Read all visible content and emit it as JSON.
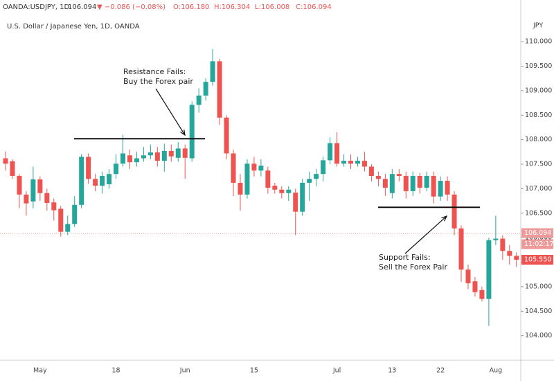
{
  "chart_data": {
    "type": "candlestick",
    "header": {
      "symbol": "OANDA:USDJPY, 1D",
      "last": "106.094",
      "change": "▼ −0.086 (−0.08%)",
      "ohlc": [
        "O:106.180",
        "H:106.304",
        "L:106.008",
        "C:106.094"
      ]
    },
    "subtitle": "U.S. Dollar / Japanese Yen, 1D, OANDA",
    "y_axis_label": "JPY",
    "up_color": "#26a69a",
    "down_color": "#ef5350",
    "categories": [
      null,
      null,
      null,
      null,
      null,
      "May",
      null,
      null,
      null,
      null,
      null,
      null,
      null,
      null,
      null,
      null,
      "18",
      null,
      null,
      null,
      null,
      null,
      null,
      null,
      null,
      null,
      "Jun",
      null,
      null,
      null,
      null,
      null,
      null,
      null,
      null,
      null,
      "15",
      null,
      null,
      null,
      null,
      null,
      null,
      null,
      null,
      null,
      null,
      null,
      "Jul",
      null,
      null,
      null,
      null,
      null,
      null,
      null,
      "13",
      null,
      null,
      null,
      null,
      null,
      null,
      "22",
      null,
      null,
      null,
      null,
      null,
      null,
      null,
      "Aug",
      null,
      null,
      null
    ],
    "open": [
      107.62,
      107.56,
      107.26,
      106.88,
      106.74,
      107.19,
      106.91,
      106.72,
      106.59,
      106.12,
      106.28,
      106.67,
      107.65,
      107.2,
      107.06,
      107.09,
      107.3,
      107.51,
      107.68,
      107.54,
      107.62,
      107.68,
      107.74,
      107.57,
      107.77,
      107.63,
      107.82,
      107.62,
      108.71,
      108.9,
      109.18,
      109.6,
      108.45,
      107.72,
      107.12,
      106.88,
      107.51,
      107.37,
      107.37,
      107.06,
      106.98,
      106.91,
      106.92,
      106.53,
      107.12,
      107.2,
      107.3,
      107.58,
      107.93,
      107.51,
      107.57,
      107.51,
      107.57,
      107.45,
      107.26,
      107.2,
      106.91,
      107.3,
      107.26,
      106.95,
      107.26,
      107.02,
      107.26,
      106.84,
      107.16,
      106.88,
      106.19,
      105.35,
      105.11,
      104.93,
      104.75,
      105.95,
      105.98,
      105.73,
      105.63
    ],
    "high": [
      107.76,
      107.6,
      107.3,
      106.95,
      107.45,
      107.25,
      107.0,
      106.8,
      106.65,
      106.45,
      106.85,
      107.7,
      107.72,
      107.3,
      107.35,
      107.4,
      107.7,
      108.1,
      107.8,
      107.75,
      107.85,
      107.9,
      107.85,
      107.92,
      107.9,
      107.95,
      107.9,
      108.78,
      109.05,
      109.25,
      109.85,
      109.65,
      108.5,
      107.8,
      107.3,
      107.6,
      107.65,
      107.6,
      107.45,
      107.12,
      107.05,
      107.05,
      107.0,
      107.2,
      107.35,
      107.4,
      107.65,
      108.05,
      108.15,
      107.7,
      107.7,
      107.65,
      107.75,
      107.5,
      107.35,
      107.3,
      107.4,
      107.4,
      107.35,
      107.35,
      107.32,
      107.35,
      107.35,
      107.25,
      107.25,
      106.95,
      106.25,
      105.45,
      105.2,
      105.0,
      106.0,
      106.45,
      106.05,
      105.85,
      105.7
    ],
    "low": [
      107.37,
      107.2,
      106.6,
      106.45,
      106.6,
      106.75,
      106.55,
      106.35,
      106.02,
      106.05,
      106.22,
      106.6,
      107.1,
      106.95,
      106.9,
      107.0,
      107.2,
      107.45,
      107.4,
      107.45,
      107.55,
      107.6,
      107.45,
      107.35,
      107.55,
      107.55,
      107.2,
      107.55,
      108.55,
      108.8,
      109.1,
      108.3,
      107.6,
      106.85,
      106.55,
      106.8,
      107.25,
      107.25,
      106.9,
      106.9,
      106.8,
      106.75,
      106.05,
      106.45,
      106.75,
      107.05,
      107.15,
      107.5,
      107.45,
      107.45,
      107.4,
      107.45,
      107.35,
      107.15,
      107.05,
      106.85,
      106.8,
      107.15,
      106.8,
      106.85,
      106.9,
      106.95,
      106.7,
      106.75,
      106.75,
      106.05,
      105.1,
      104.95,
      104.8,
      104.7,
      104.2,
      105.85,
      105.55,
      105.45,
      105.4
    ],
    "close": [
      107.51,
      107.26,
      106.88,
      106.7,
      107.19,
      106.91,
      106.71,
      106.56,
      106.12,
      106.28,
      106.67,
      107.65,
      107.2,
      107.06,
      107.26,
      107.3,
      107.51,
      107.72,
      107.54,
      107.62,
      107.68,
      107.74,
      107.57,
      107.77,
      107.66,
      107.82,
      107.63,
      108.71,
      108.9,
      109.18,
      109.6,
      108.45,
      107.72,
      107.12,
      106.88,
      107.51,
      107.37,
      107.47,
      107.02,
      106.98,
      106.91,
      106.98,
      106.53,
      107.12,
      107.2,
      107.3,
      107.58,
      107.93,
      107.51,
      107.57,
      107.51,
      107.57,
      107.45,
      107.26,
      107.2,
      107.02,
      107.3,
      107.26,
      106.95,
      107.26,
      107.02,
      107.26,
      106.84,
      107.16,
      106.88,
      106.19,
      105.35,
      105.07,
      104.89,
      104.75,
      105.95,
      105.98,
      105.73,
      105.63,
      105.55
    ],
    "ylim": [
      103.5,
      110.85
    ],
    "yticks": [
      {
        "value": 104,
        "label": "104.000"
      },
      {
        "value": 104.5,
        "label": "104.500"
      },
      {
        "value": 105,
        "label": "105.000"
      },
      {
        "value": 105.5,
        "label": "105.500"
      },
      {
        "value": 106,
        "label": "106.000"
      },
      {
        "value": 106.5,
        "label": "106.500"
      },
      {
        "value": 107,
        "label": "107.000"
      },
      {
        "value": 107.5,
        "label": "107.500"
      },
      {
        "value": 108,
        "label": "108.000"
      },
      {
        "value": 108.5,
        "label": "108.500"
      },
      {
        "value": 109,
        "label": "109.000"
      },
      {
        "value": 109.5,
        "label": "109.500"
      },
      {
        "value": 110,
        "label": "110.000"
      }
    ],
    "price_tags": [
      {
        "value": 106.094,
        "label": "106.094",
        "color": "#ef9a9a"
      },
      {
        "label": "11:02:17",
        "color": "#ef9a9a"
      },
      {
        "value": 105.55,
        "label": "105.550",
        "color": "#ef5350"
      }
    ],
    "annotations": [
      {
        "text": [
          "Resistance Fails:",
          "Buy the Forex pair"
        ],
        "level": 108.02
      },
      {
        "text": [
          "Support Fails:",
          "Sell the Forex Pair"
        ],
        "level": 106.62
      }
    ]
  }
}
